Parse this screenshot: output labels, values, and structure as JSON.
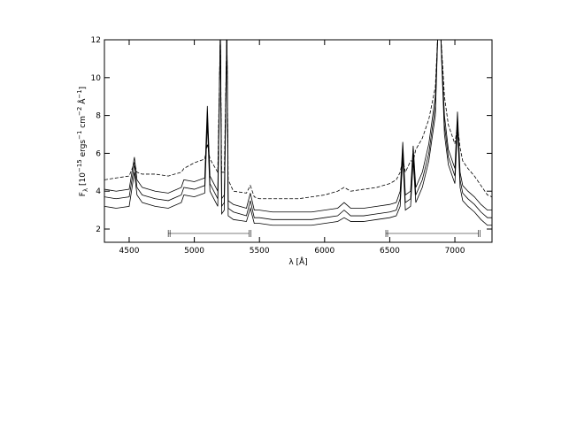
{
  "chart_data": {
    "type": "line",
    "x_label": "λ [Å]",
    "y_label_parts": [
      "F",
      "λ",
      " [10",
      "−15",
      " ergs",
      "−1",
      " cm",
      "−2",
      " Å",
      "−1",
      "]"
    ],
    "x": [
      4310,
      4400,
      4500,
      4540,
      4560,
      4600,
      4700,
      4800,
      4900,
      4920,
      5000,
      5080,
      5100,
      5120,
      5180,
      5200,
      5210,
      5230,
      5250,
      5260,
      5300,
      5400,
      5430,
      5460,
      5500,
      5600,
      5700,
      5800,
      5900,
      6000,
      6100,
      6150,
      6200,
      6300,
      6400,
      6500,
      6550,
      6580,
      6600,
      6620,
      6660,
      6680,
      6700,
      6750,
      6800,
      6850,
      6870,
      6890,
      6920,
      6950,
      7000,
      7020,
      7040,
      7060,
      7100,
      7150,
      7200,
      7250,
      7285
    ],
    "series": [
      {
        "color": "#000000",
        "dashed": true,
        "values": [
          4.6,
          4.7,
          4.8,
          5.5,
          5.0,
          4.9,
          4.9,
          4.8,
          5.0,
          5.2,
          5.5,
          5.7,
          6.5,
          5.7,
          5.0,
          12.5,
          5.0,
          5.0,
          12.5,
          4.6,
          4.0,
          3.9,
          4.3,
          3.7,
          3.6,
          3.6,
          3.6,
          3.6,
          3.7,
          3.8,
          4.0,
          4.2,
          4.0,
          4.1,
          4.2,
          4.4,
          4.6,
          5.0,
          5.7,
          5.0,
          5.6,
          5.6,
          6.2,
          6.8,
          7.8,
          9.5,
          12.5,
          12.5,
          9.0,
          7.5,
          6.5,
          7.5,
          6.3,
          5.6,
          5.2,
          4.8,
          4.3,
          3.8,
          3.7
        ]
      },
      {
        "color": "#000000",
        "dashed": false,
        "values": [
          4.1,
          4.0,
          4.1,
          5.8,
          4.6,
          4.2,
          4.0,
          3.9,
          4.2,
          4.6,
          4.5,
          4.7,
          8.5,
          4.8,
          4.0,
          12.5,
          3.6,
          3.8,
          12.5,
          3.5,
          3.3,
          3.1,
          3.9,
          3.0,
          3.0,
          2.9,
          2.9,
          2.9,
          2.9,
          3.0,
          3.1,
          3.4,
          3.1,
          3.1,
          3.2,
          3.3,
          3.4,
          4.0,
          6.6,
          3.8,
          4.0,
          6.4,
          4.2,
          5.0,
          6.5,
          9.0,
          12.5,
          12.5,
          8.0,
          6.2,
          5.2,
          8.2,
          5.0,
          4.3,
          4.0,
          3.7,
          3.3,
          3.0,
          3.0
        ]
      },
      {
        "color": "#000000",
        "dashed": false,
        "values": [
          3.7,
          3.6,
          3.7,
          5.4,
          4.2,
          3.8,
          3.6,
          3.5,
          3.8,
          4.2,
          4.1,
          4.3,
          8.0,
          4.4,
          3.6,
          12.5,
          3.2,
          3.4,
          12.5,
          3.1,
          2.9,
          2.7,
          3.5,
          2.6,
          2.6,
          2.5,
          2.5,
          2.5,
          2.5,
          2.6,
          2.7,
          3.0,
          2.7,
          2.7,
          2.8,
          2.9,
          3.0,
          3.6,
          6.2,
          3.4,
          3.6,
          6.0,
          3.8,
          4.6,
          6.0,
          8.5,
          12.5,
          12.5,
          7.5,
          5.8,
          4.8,
          7.8,
          4.6,
          3.9,
          3.6,
          3.3,
          2.9,
          2.6,
          2.6
        ]
      },
      {
        "color": "#000000",
        "dashed": false,
        "values": [
          3.2,
          3.1,
          3.2,
          5.0,
          3.8,
          3.4,
          3.2,
          3.1,
          3.4,
          3.8,
          3.7,
          3.9,
          7.6,
          4.0,
          3.2,
          12.5,
          2.8,
          3.0,
          12.5,
          2.7,
          2.5,
          2.4,
          3.1,
          2.3,
          2.3,
          2.2,
          2.2,
          2.2,
          2.2,
          2.3,
          2.4,
          2.6,
          2.4,
          2.4,
          2.5,
          2.6,
          2.7,
          3.2,
          5.8,
          3.0,
          3.2,
          5.6,
          3.4,
          4.2,
          5.6,
          8.0,
          12.5,
          12.5,
          7.0,
          5.4,
          4.4,
          7.4,
          4.2,
          3.5,
          3.2,
          2.9,
          2.5,
          2.2,
          2.2
        ]
      }
    ],
    "ranges": [
      [
        4800,
        5420
      ],
      [
        6470,
        7180
      ]
    ],
    "xlim": [
      4310,
      7285
    ],
    "ylim": [
      1.3,
      12
    ],
    "xticks": [
      4500,
      5000,
      5500,
      6000,
      6500,
      7000
    ],
    "yticks": [
      2,
      4,
      6,
      8,
      10,
      12
    ]
  }
}
